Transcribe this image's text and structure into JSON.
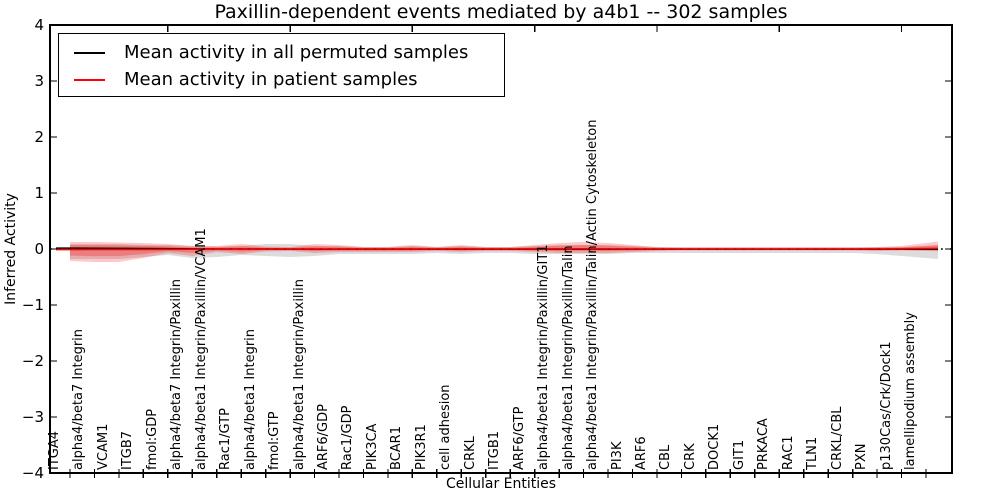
{
  "figure": {
    "title": "Paxillin-dependent events mediated by a4b1 -- 302 samples"
  },
  "legend": {
    "entries": [
      {
        "label": "Mean activity in all permuted samples",
        "color": "#000000"
      },
      {
        "label": "Mean activity in patient samples",
        "color": "#ff0000"
      }
    ]
  },
  "chart_data": {
    "type": "line",
    "title": "Paxillin-dependent events mediated by a4b1 -- 302 samples",
    "xlabel": "Cellular Entities",
    "ylabel": "Inferred Activity",
    "ylim": [
      -4,
      4
    ],
    "yticks": [
      4,
      3,
      2,
      1,
      0,
      -1,
      -2,
      -3,
      -4
    ],
    "ytick_labels": [
      "4",
      "3",
      "2",
      "1",
      "0",
      "−1",
      "−2",
      "−3",
      "−4"
    ],
    "grid": false,
    "legend_position": "upper left",
    "zero_line": {
      "y": 0,
      "style": "dotted",
      "color": "#000000"
    },
    "categories": [
      "ITGA4",
      "alpha4/beta7 Integrin",
      "VCAM1",
      "ITGB7",
      "fmol:GDP",
      "alpha4/beta7 Integrin/Paxillin",
      "alpha4/beta1 Integrin/Paxillin/VCAM1",
      "Rac1/GTP",
      "alpha4/beta1 Integrin",
      "fmol:GTP",
      "alpha4/beta1 Integrin/Paxillin",
      "ARF6/GDP",
      "Rac1/GDP",
      "PIK3CA",
      "BCAR1",
      "PIK3R1",
      "cell adhesion",
      "CRKL",
      "ITGB1",
      "ARF6/GTP",
      "alpha4/beta1 Integrin/Paxillin/GIT1",
      "alpha4/beta1 Integrin/Paxillin/Talin",
      "alpha4/beta1 Integrin/Paxillin/Talin/Actin Cytoskeleton",
      "PI3K",
      "ARF6",
      "CBL",
      "CRK",
      "DOCK1",
      "GIT1",
      "PRKACA",
      "RAC1",
      "TLN1",
      "CRKL/CBL",
      "PXN",
      "p130Cas/Crk/Dock1",
      "lamellipodium assembly"
    ],
    "series": [
      {
        "name": "Mean activity in all permuted samples",
        "color": "#000000",
        "style": "solid",
        "values": [
          0.015,
          0.013,
          0.011,
          0.009,
          0.006,
          0.003,
          0.001,
          0.0,
          0.0,
          -0.002,
          -0.002,
          -0.002,
          -0.002,
          -0.002,
          -0.002,
          -0.002,
          -0.002,
          -0.002,
          -0.002,
          -0.002,
          -0.002,
          -0.002,
          -0.002,
          -0.002,
          -0.002,
          -0.002,
          -0.002,
          -0.002,
          -0.002,
          -0.002,
          -0.002,
          -0.002,
          -0.002,
          -0.002,
          -0.003,
          -0.004
        ]
      },
      {
        "name": "Mean activity in patient samples",
        "color": "#ff0000",
        "style": "solid",
        "values": [
          -0.011,
          -0.01,
          -0.01,
          -0.009,
          -0.007,
          -0.005,
          -0.003,
          -0.002,
          -0.001,
          0.0,
          0.0,
          0.0,
          0.0,
          0.001,
          0.001,
          0.0,
          0.002,
          0.001,
          0.0,
          0.003,
          0.004,
          0.004,
          0.003,
          0.001,
          0.0,
          0.0,
          0.0,
          0.0,
          0.0,
          0.0,
          0.0,
          0.001,
          0.001,
          0.002,
          0.004,
          0.009
        ]
      }
    ],
    "bands": [
      {
        "name": "permuted samples spread",
        "color": "#808080",
        "opacity": 0.28,
        "upper": [
          0.089,
          0.089,
          0.089,
          0.071,
          0.071,
          0.054,
          0.045,
          0.054,
          0.089,
          0.089,
          0.054,
          0.054,
          0.036,
          0.036,
          0.054,
          0.036,
          0.054,
          0.036,
          0.036,
          0.054,
          0.071,
          0.071,
          0.071,
          0.054,
          0.036,
          0.036,
          0.036,
          0.036,
          0.036,
          0.036,
          0.036,
          0.036,
          0.036,
          0.036,
          0.036,
          0.054
        ],
        "lower": [
          -0.179,
          -0.179,
          -0.179,
          -0.143,
          -0.107,
          -0.161,
          -0.143,
          -0.107,
          -0.125,
          -0.143,
          -0.125,
          -0.089,
          -0.089,
          -0.089,
          -0.089,
          -0.071,
          -0.089,
          -0.071,
          -0.071,
          -0.089,
          -0.089,
          -0.089,
          -0.089,
          -0.071,
          -0.071,
          -0.071,
          -0.071,
          -0.071,
          -0.071,
          -0.071,
          -0.071,
          -0.071,
          -0.071,
          -0.089,
          -0.125,
          -0.161
        ]
      },
      {
        "name": "patient samples spread",
        "color": "#ff0000",
        "opacity": 0.22,
        "upper": [
          0.125,
          0.125,
          0.116,
          0.107,
          0.089,
          0.054,
          0.054,
          0.089,
          0.045,
          0.036,
          0.089,
          0.071,
          0.036,
          0.036,
          0.071,
          0.036,
          0.071,
          0.036,
          0.036,
          0.071,
          0.107,
          0.125,
          0.107,
          0.071,
          0.036,
          0.027,
          0.027,
          0.027,
          0.027,
          0.027,
          0.027,
          0.027,
          0.027,
          0.036,
          0.054,
          0.107
        ],
        "lower": [
          -0.214,
          -0.232,
          -0.232,
          -0.161,
          -0.071,
          -0.125,
          -0.054,
          -0.089,
          -0.045,
          -0.036,
          -0.071,
          -0.054,
          -0.054,
          -0.054,
          -0.054,
          -0.036,
          -0.054,
          -0.036,
          -0.036,
          -0.054,
          -0.071,
          -0.071,
          -0.071,
          -0.054,
          -0.036,
          -0.027,
          -0.027,
          -0.027,
          -0.027,
          -0.027,
          -0.027,
          -0.027,
          -0.027,
          -0.036,
          -0.027,
          -0.036
        ]
      }
    ]
  }
}
